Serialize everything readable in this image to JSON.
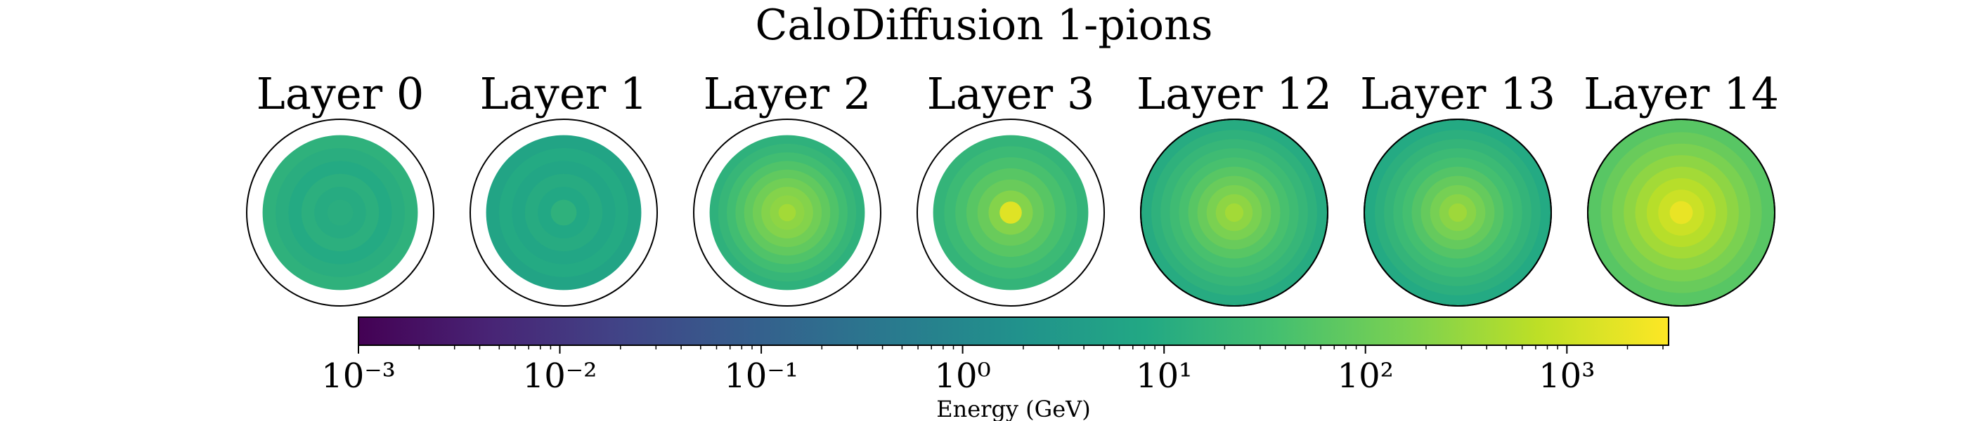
{
  "chart_data": {
    "type": "heatmap",
    "title": "CaloDiffusion 1-pions",
    "panels": [
      {
        "title": "Layer 0",
        "detector_filled": false,
        "rings_log10_gev": [
          1.05,
          1.0,
          1.1,
          0.95,
          1.05,
          1.15
        ]
      },
      {
        "title": "Layer 1",
        "detector_filled": false,
        "rings_log10_gev": [
          1.15,
          0.9,
          1.0,
          0.85,
          0.95,
          0.8
        ]
      },
      {
        "title": "Layer 2",
        "detector_filled": false,
        "rings_log10_gev": [
          2.6,
          2.4,
          2.3,
          2.1,
          1.9,
          1.7,
          1.5,
          1.3,
          1.15
        ]
      },
      {
        "title": "Layer 3",
        "detector_filled": false,
        "rings_log10_gev": [
          3.2,
          2.3,
          2.0,
          1.8,
          1.6,
          1.4,
          1.25
        ]
      },
      {
        "title": "Layer 12",
        "detector_filled": true,
        "rings_log10_gev": [
          2.6,
          2.4,
          2.2,
          2.0,
          1.8,
          1.6,
          1.45,
          1.3,
          1.15,
          1.0
        ]
      },
      {
        "title": "Layer 13",
        "detector_filled": true,
        "rings_log10_gev": [
          2.55,
          2.35,
          2.15,
          1.95,
          1.75,
          1.55,
          1.4,
          1.25,
          1.1,
          0.95
        ]
      },
      {
        "title": "Layer 14",
        "detector_filled": true,
        "rings_log10_gev": [
          3.3,
          3.0,
          2.8,
          2.6,
          2.4,
          2.2,
          2.0,
          1.8
        ]
      }
    ],
    "colorbar": {
      "label": "Energy (GeV)",
      "scale": "log",
      "range_gev": [
        0.001,
        3200
      ],
      "ticks_log10": [
        -3,
        -2,
        -1,
        0,
        1,
        2,
        3
      ],
      "colormap": "viridis"
    }
  }
}
